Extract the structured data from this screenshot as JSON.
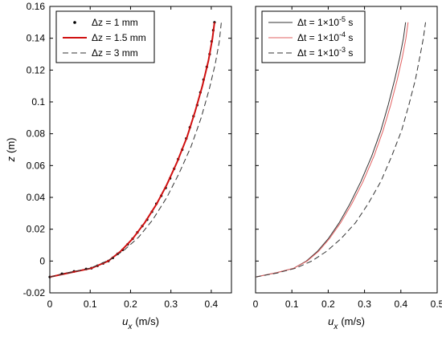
{
  "chart_data": [
    {
      "type": "line",
      "xlabel_var": "u",
      "xlabel_sub": "x",
      "xlabel_unit": "(m/s)",
      "ylabel_var": "z",
      "ylabel_unit": "(m)",
      "xlim": [
        0,
        0.45
      ],
      "ylim": [
        -0.02,
        0.16
      ],
      "xticks": [
        "0",
        "0.1",
        "0.2",
        "0.3",
        "0.4"
      ],
      "yticks": [
        "-0.02",
        "0",
        "0.02",
        "0.04",
        "0.06",
        "0.08",
        "0.1",
        "0.12",
        "0.14",
        "0.16"
      ],
      "legend_position": "top-left",
      "series": [
        {
          "name": "Δz = 1 mm",
          "color": "#000000",
          "style": "dots",
          "points": [
            [
              0.0,
              -0.01
            ],
            [
              0.03,
              -0.008
            ],
            [
              0.06,
              -0.0065
            ],
            [
              0.09,
              -0.005
            ],
            [
              0.103,
              -0.0045
            ],
            [
              0.118,
              -0.003
            ],
            [
              0.132,
              -0.0015
            ],
            [
              0.145,
              0.0
            ],
            [
              0.156,
              0.002
            ],
            [
              0.168,
              0.0045
            ],
            [
              0.18,
              0.007
            ],
            [
              0.193,
              0.0105
            ],
            [
              0.205,
              0.014
            ],
            [
              0.217,
              0.018
            ],
            [
              0.229,
              0.022
            ],
            [
              0.241,
              0.026
            ],
            [
              0.253,
              0.031
            ],
            [
              0.264,
              0.036
            ],
            [
              0.276,
              0.041
            ],
            [
              0.287,
              0.046
            ],
            [
              0.298,
              0.052
            ],
            [
              0.308,
              0.058
            ],
            [
              0.318,
              0.064
            ],
            [
              0.328,
              0.07
            ],
            [
              0.338,
              0.077
            ],
            [
              0.347,
              0.084
            ],
            [
              0.356,
              0.091
            ],
            [
              0.365,
              0.098
            ],
            [
              0.373,
              0.106
            ],
            [
              0.381,
              0.114
            ],
            [
              0.389,
              0.122
            ],
            [
              0.396,
              0.13
            ],
            [
              0.401,
              0.138
            ],
            [
              0.405,
              0.145
            ],
            [
              0.408,
              0.15
            ]
          ]
        },
        {
          "name": "Δz = 1.5 mm",
          "color": "#d01010",
          "style": "solid-thick",
          "points": [
            [
              0.0,
              -0.01
            ],
            [
              0.103,
              -0.0045
            ],
            [
              0.145,
              0.0
            ],
            [
              0.175,
              0.006
            ],
            [
              0.205,
              0.014
            ],
            [
              0.235,
              0.024
            ],
            [
              0.265,
              0.036
            ],
            [
              0.29,
              0.048
            ],
            [
              0.315,
              0.062
            ],
            [
              0.34,
              0.078
            ],
            [
              0.36,
              0.094
            ],
            [
              0.378,
              0.11
            ],
            [
              0.393,
              0.126
            ],
            [
              0.403,
              0.14
            ],
            [
              0.408,
              0.15
            ]
          ]
        },
        {
          "name": "Δz = 3 mm",
          "color": "#333333",
          "style": "dashed",
          "points": [
            [
              0.0,
              -0.01
            ],
            [
              0.1,
              -0.0045
            ],
            [
              0.15,
              0.001
            ],
            [
              0.185,
              0.007
            ],
            [
              0.22,
              0.015
            ],
            [
              0.255,
              0.026
            ],
            [
              0.29,
              0.04
            ],
            [
              0.32,
              0.055
            ],
            [
              0.35,
              0.072
            ],
            [
              0.375,
              0.09
            ],
            [
              0.395,
              0.108
            ],
            [
              0.41,
              0.124
            ],
            [
              0.42,
              0.138
            ],
            [
              0.425,
              0.15
            ]
          ]
        }
      ]
    },
    {
      "type": "line",
      "xlabel_var": "u",
      "xlabel_sub": "x",
      "xlabel_unit": "(m/s)",
      "xlim": [
        0,
        0.5
      ],
      "ylim": [
        -0.02,
        0.16
      ],
      "xticks": [
        "0",
        "0.1",
        "0.2",
        "0.3",
        "0.4",
        "0.5"
      ],
      "legend_position": "top-left",
      "series": [
        {
          "name_prefix": "Δt = 1×10",
          "name_exp": "-5",
          "name_suffix": " s",
          "color": "#333333",
          "style": "solid-thin",
          "points": [
            [
              0.0,
              -0.01
            ],
            [
              0.06,
              -0.0072
            ],
            [
              0.105,
              -0.0045
            ],
            [
              0.14,
              0.0
            ],
            [
              0.17,
              0.006
            ],
            [
              0.2,
              0.014
            ],
            [
              0.23,
              0.024
            ],
            [
              0.26,
              0.036
            ],
            [
              0.29,
              0.05
            ],
            [
              0.32,
              0.066
            ],
            [
              0.345,
              0.082
            ],
            [
              0.365,
              0.098
            ],
            [
              0.383,
              0.114
            ],
            [
              0.397,
              0.128
            ],
            [
              0.407,
              0.14
            ],
            [
              0.413,
              0.15
            ]
          ]
        },
        {
          "name_prefix": "Δt = 1×10",
          "name_exp": "-4",
          "name_suffix": " s",
          "color": "#e26060",
          "style": "solid-thin",
          "points": [
            [
              0.0,
              -0.01
            ],
            [
              0.06,
              -0.0072
            ],
            [
              0.105,
              -0.0045
            ],
            [
              0.142,
              0.0
            ],
            [
              0.173,
              0.006
            ],
            [
              0.203,
              0.014
            ],
            [
              0.234,
              0.024
            ],
            [
              0.265,
              0.036
            ],
            [
              0.296,
              0.05
            ],
            [
              0.326,
              0.066
            ],
            [
              0.351,
              0.082
            ],
            [
              0.372,
              0.098
            ],
            [
              0.39,
              0.114
            ],
            [
              0.404,
              0.128
            ],
            [
              0.414,
              0.14
            ],
            [
              0.42,
              0.15
            ]
          ]
        },
        {
          "name_prefix": "Δt = 1×10",
          "name_exp": "-3",
          "name_suffix": " s",
          "color": "#333333",
          "style": "dashed",
          "points": [
            [
              0.0,
              -0.01
            ],
            [
              0.06,
              -0.0075
            ],
            [
              0.11,
              -0.0045
            ],
            [
              0.155,
              0.0
            ],
            [
              0.195,
              0.006
            ],
            [
              0.235,
              0.014
            ],
            [
              0.275,
              0.024
            ],
            [
              0.31,
              0.036
            ],
            [
              0.345,
              0.05
            ],
            [
              0.375,
              0.066
            ],
            [
              0.402,
              0.082
            ],
            [
              0.422,
              0.098
            ],
            [
              0.44,
              0.114
            ],
            [
              0.452,
              0.128
            ],
            [
              0.462,
              0.14
            ],
            [
              0.468,
              0.15
            ]
          ]
        }
      ]
    }
  ]
}
